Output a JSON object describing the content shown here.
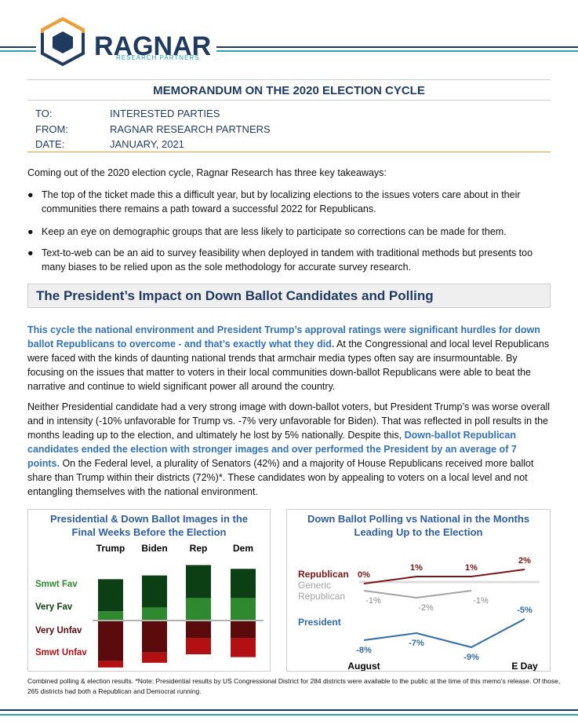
{
  "header": {
    "logo": "RAGNAR",
    "logo_sub": "RESEARCH PARTNERS"
  },
  "memo": {
    "title": "MEMORANDUM ON THE 2020 ELECTION CYCLE",
    "fields": [
      {
        "label": "TO:",
        "value": "INTERESTED PARTIES"
      },
      {
        "label": "FROM:",
        "value": "RAGNAR RESEARCH PARTNERS"
      },
      {
        "label": "DATE:",
        "value": "JANUARY, 2021"
      }
    ]
  },
  "intro": "Coming out of the 2020 election cycle, Ragnar Research has three key takeaways:",
  "bullets": [
    "The top of the ticket made this a difficult year, but by localizing elections to the issues voters care about in their communities there remains a path toward a successful 2022 for Republicans.",
    "Keep an eye on demographic groups that are less likely to participate so corrections can be made for them.",
    "Text-to-web can be an aid to survey feasibility when deployed in tandem with traditional methods but presents too many biases to be relied upon as the sole methodology for accurate survey research."
  ],
  "section_title": "The President’s Impact on Down Ballot Candidates and Polling",
  "paragraphs": [
    {
      "highlight": "This cycle the national environment and President Trump’s approval ratings were significant hurdles for down ballot Republicans to overcome - and that’s exactly what they did.",
      "end": " At the Congressional and local level Republicans were faced with the kinds of daunting national trends that armchair media types often say are insurmountable. By focusing on the issues that matter to voters in their local communities down-ballot Republicans were able to beat the narrative and continue to wield significant power all around the country."
    },
    {
      "start": "Neither Presidential candidate had a very strong image with down-ballot voters, but President Trump’s was worse overall and in intensity (-10% unfavorable for Trump vs. -7% very unfavorable for Biden). That was reflected in poll results in the months leading up to the election, and ultimately he lost by 5% nationally. Despite this, ",
      "highlight": "Down-ballot Republican candidates ended the election with stronger images and over performed the President by an average of 7 points.",
      "end": " On the Federal level, a plurality of Senators (42%) and a majority of House Republicans received more ballot share than Trump within their districts (72%)*. These candidates won by appealing to voters on a local level and not entangling themselves with the national environment."
    }
  ],
  "chart_data": [
    {
      "type": "diverging_stacked_bar",
      "title": "Presidential & Down Ballot Images in the Final Weeks Before the Election",
      "categories": [
        "Trump",
        "Biden",
        "Rep",
        "Dem"
      ],
      "series": [
        {
          "name": "Smwt Fav",
          "color": "#2f8a2f",
          "values": [
            9,
            13,
            23,
            23
          ]
        },
        {
          "name": "Very Fav",
          "color": "#0d3f14",
          "values": [
            34,
            34,
            35,
            31
          ]
        },
        {
          "name": "Very Unfav",
          "color": "#5c0b0d",
          "values": [
            -42,
            -33,
            -18,
            -18
          ]
        },
        {
          "name": "Smwt Unfav",
          "color": "#b31014",
          "values": [
            -7,
            -11,
            -17,
            -20
          ]
        }
      ]
    },
    {
      "type": "line",
      "title": "Down Ballot Polling vs National in the Months Leading Up to the Election",
      "categories": [
        "August",
        null,
        null,
        "E Day"
      ],
      "series": [
        {
          "name": "Republican",
          "color": "#7a1416",
          "values": [
            0,
            1,
            1,
            2
          ],
          "value_labels": [
            "0%",
            "1%",
            "1%",
            "2%"
          ]
        },
        {
          "name": "Generic Republican",
          "color": "#a3a3a3",
          "values": [
            -1,
            -2,
            -1,
            null
          ],
          "value_labels": [
            "-1%",
            "-2%",
            "-1%",
            null
          ]
        },
        {
          "name": "President",
          "color": "#2f6da6",
          "values": [
            -8,
            -7,
            -9,
            -5
          ],
          "value_labels": [
            "-8%",
            "-7%",
            "-9%",
            "-5%"
          ]
        }
      ]
    }
  ],
  "footnote": "Combined polling & election results. *Note: Presidential results by US Congressional District for 284 districts were available to the public at the time of this memo’s release. Of those, 265 districts had both a Republican and Democrat running."
}
